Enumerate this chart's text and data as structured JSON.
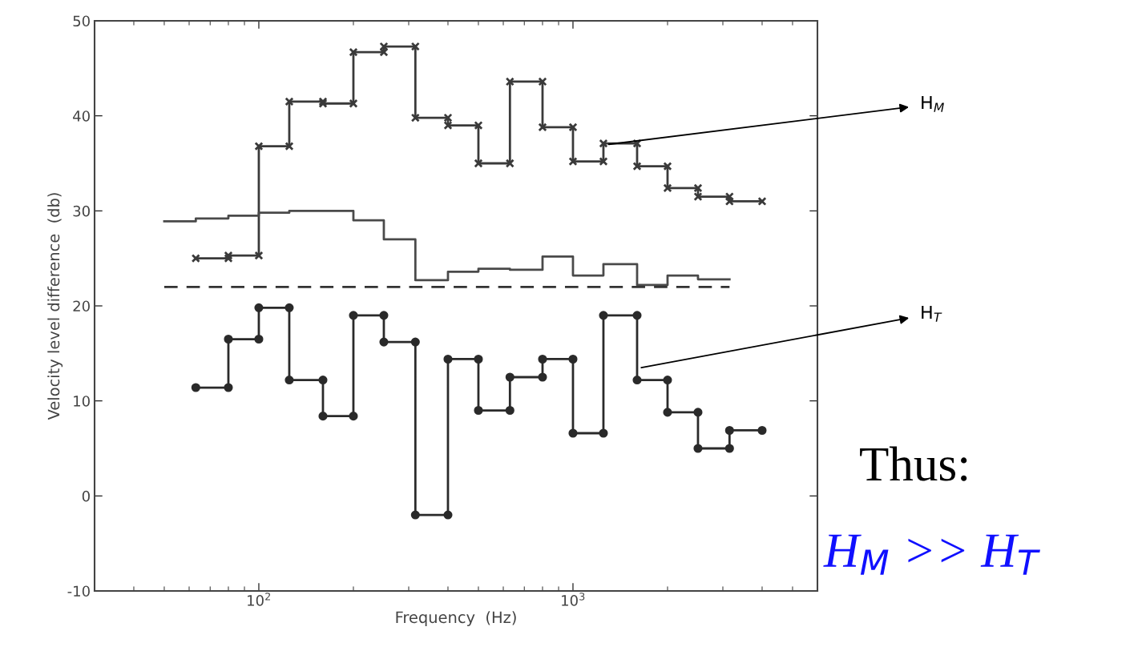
{
  "chart_data": {
    "type": "line",
    "xlabel": "Frequency  (Hz)",
    "ylabel": "Velocity level difference  (db)",
    "series": [
      {
        "color": "#3a3a3a",
        "marker": "cross",
        "x": [
          63,
          80,
          80,
          100,
          100,
          125,
          125,
          160,
          160,
          200,
          200,
          250,
          250,
          315,
          315,
          400,
          400,
          500,
          500,
          630,
          630,
          800,
          800,
          1000,
          1000,
          1250,
          1250,
          1600,
          1600,
          2000,
          2000,
          2500,
          2500,
          3150,
          3150,
          4000
        ],
        "values": [
          25,
          25,
          25.3,
          25.3,
          36.8,
          36.8,
          41.5,
          41.5,
          41.3,
          41.3,
          46.7,
          46.7,
          47.3,
          47.3,
          39.8,
          39.8,
          39,
          39,
          35,
          35,
          43.6,
          43.6,
          38.8,
          38.8,
          35.2,
          35.2,
          37.1,
          37.1,
          34.7,
          34.7,
          32.4,
          32.4,
          31.5,
          31.5,
          31,
          31
        ]
      },
      {
        "color": "#4a4a4a",
        "x": [
          50,
          63,
          63,
          80,
          80,
          100,
          100,
          125,
          125,
          160,
          160,
          200,
          200,
          250,
          250,
          315,
          315,
          400,
          400,
          500,
          500,
          630,
          630,
          800,
          800,
          1000,
          1000,
          1250,
          1250,
          1600,
          1600,
          2000,
          2000,
          2500,
          2500,
          3150
        ],
        "values": [
          28.9,
          28.9,
          29.2,
          29.2,
          29.5,
          29.5,
          29.8,
          29.8,
          30,
          30,
          30,
          30,
          29,
          29,
          27,
          27,
          22.7,
          22.7,
          23.6,
          23.6,
          23.9,
          23.9,
          23.8,
          23.8,
          25.2,
          25.2,
          23.2,
          23.2,
          24.4,
          24.4,
          22.2,
          22.2,
          23.2,
          23.2,
          22.8,
          22.8
        ]
      },
      {
        "color": "#333333",
        "line_style": "dashed",
        "x": [
          50,
          3150
        ],
        "values": [
          22,
          22
        ]
      },
      {
        "color": "#2a2a2a",
        "marker": "circle",
        "x": [
          63,
          80,
          80,
          100,
          100,
          125,
          125,
          160,
          160,
          200,
          200,
          250,
          250,
          315,
          315,
          400,
          400,
          500,
          500,
          630,
          630,
          800,
          800,
          1000,
          1000,
          1250,
          1250,
          1600,
          1600,
          2000,
          2000,
          2500,
          2500,
          3150,
          3150,
          4000
        ],
        "values": [
          11.4,
          11.4,
          16.5,
          16.5,
          19.8,
          19.8,
          12.2,
          12.2,
          8.4,
          8.4,
          19,
          19,
          16.2,
          16.2,
          -2,
          -2,
          14.4,
          14.4,
          9,
          9,
          12.5,
          12.5,
          14.4,
          14.4,
          6.6,
          6.6,
          19,
          19,
          12.2,
          12.2,
          8.8,
          8.8,
          5,
          5,
          6.9,
          6.9
        ]
      }
    ],
    "log": "x",
    "xlim": [
      30,
      6000
    ],
    "xticks": [
      {
        "value": 100,
        "label": "10$^{2}$"
      },
      {
        "value": 1000,
        "label": "10$^{3}$"
      }
    ],
    "ylim": [
      -10,
      50
    ],
    "yticks": [
      -10,
      0,
      10,
      20,
      30,
      40,
      50
    ],
    "grid": false,
    "annotations": [
      {
        "text": "H$_{M}$",
        "x": 1300,
        "y": 37
      },
      {
        "text": "H$_{T}$",
        "x": 1650,
        "y": 13.5
      },
      "Thus:",
      "H$_{M}$ >> H$_{T}$"
    ]
  }
}
